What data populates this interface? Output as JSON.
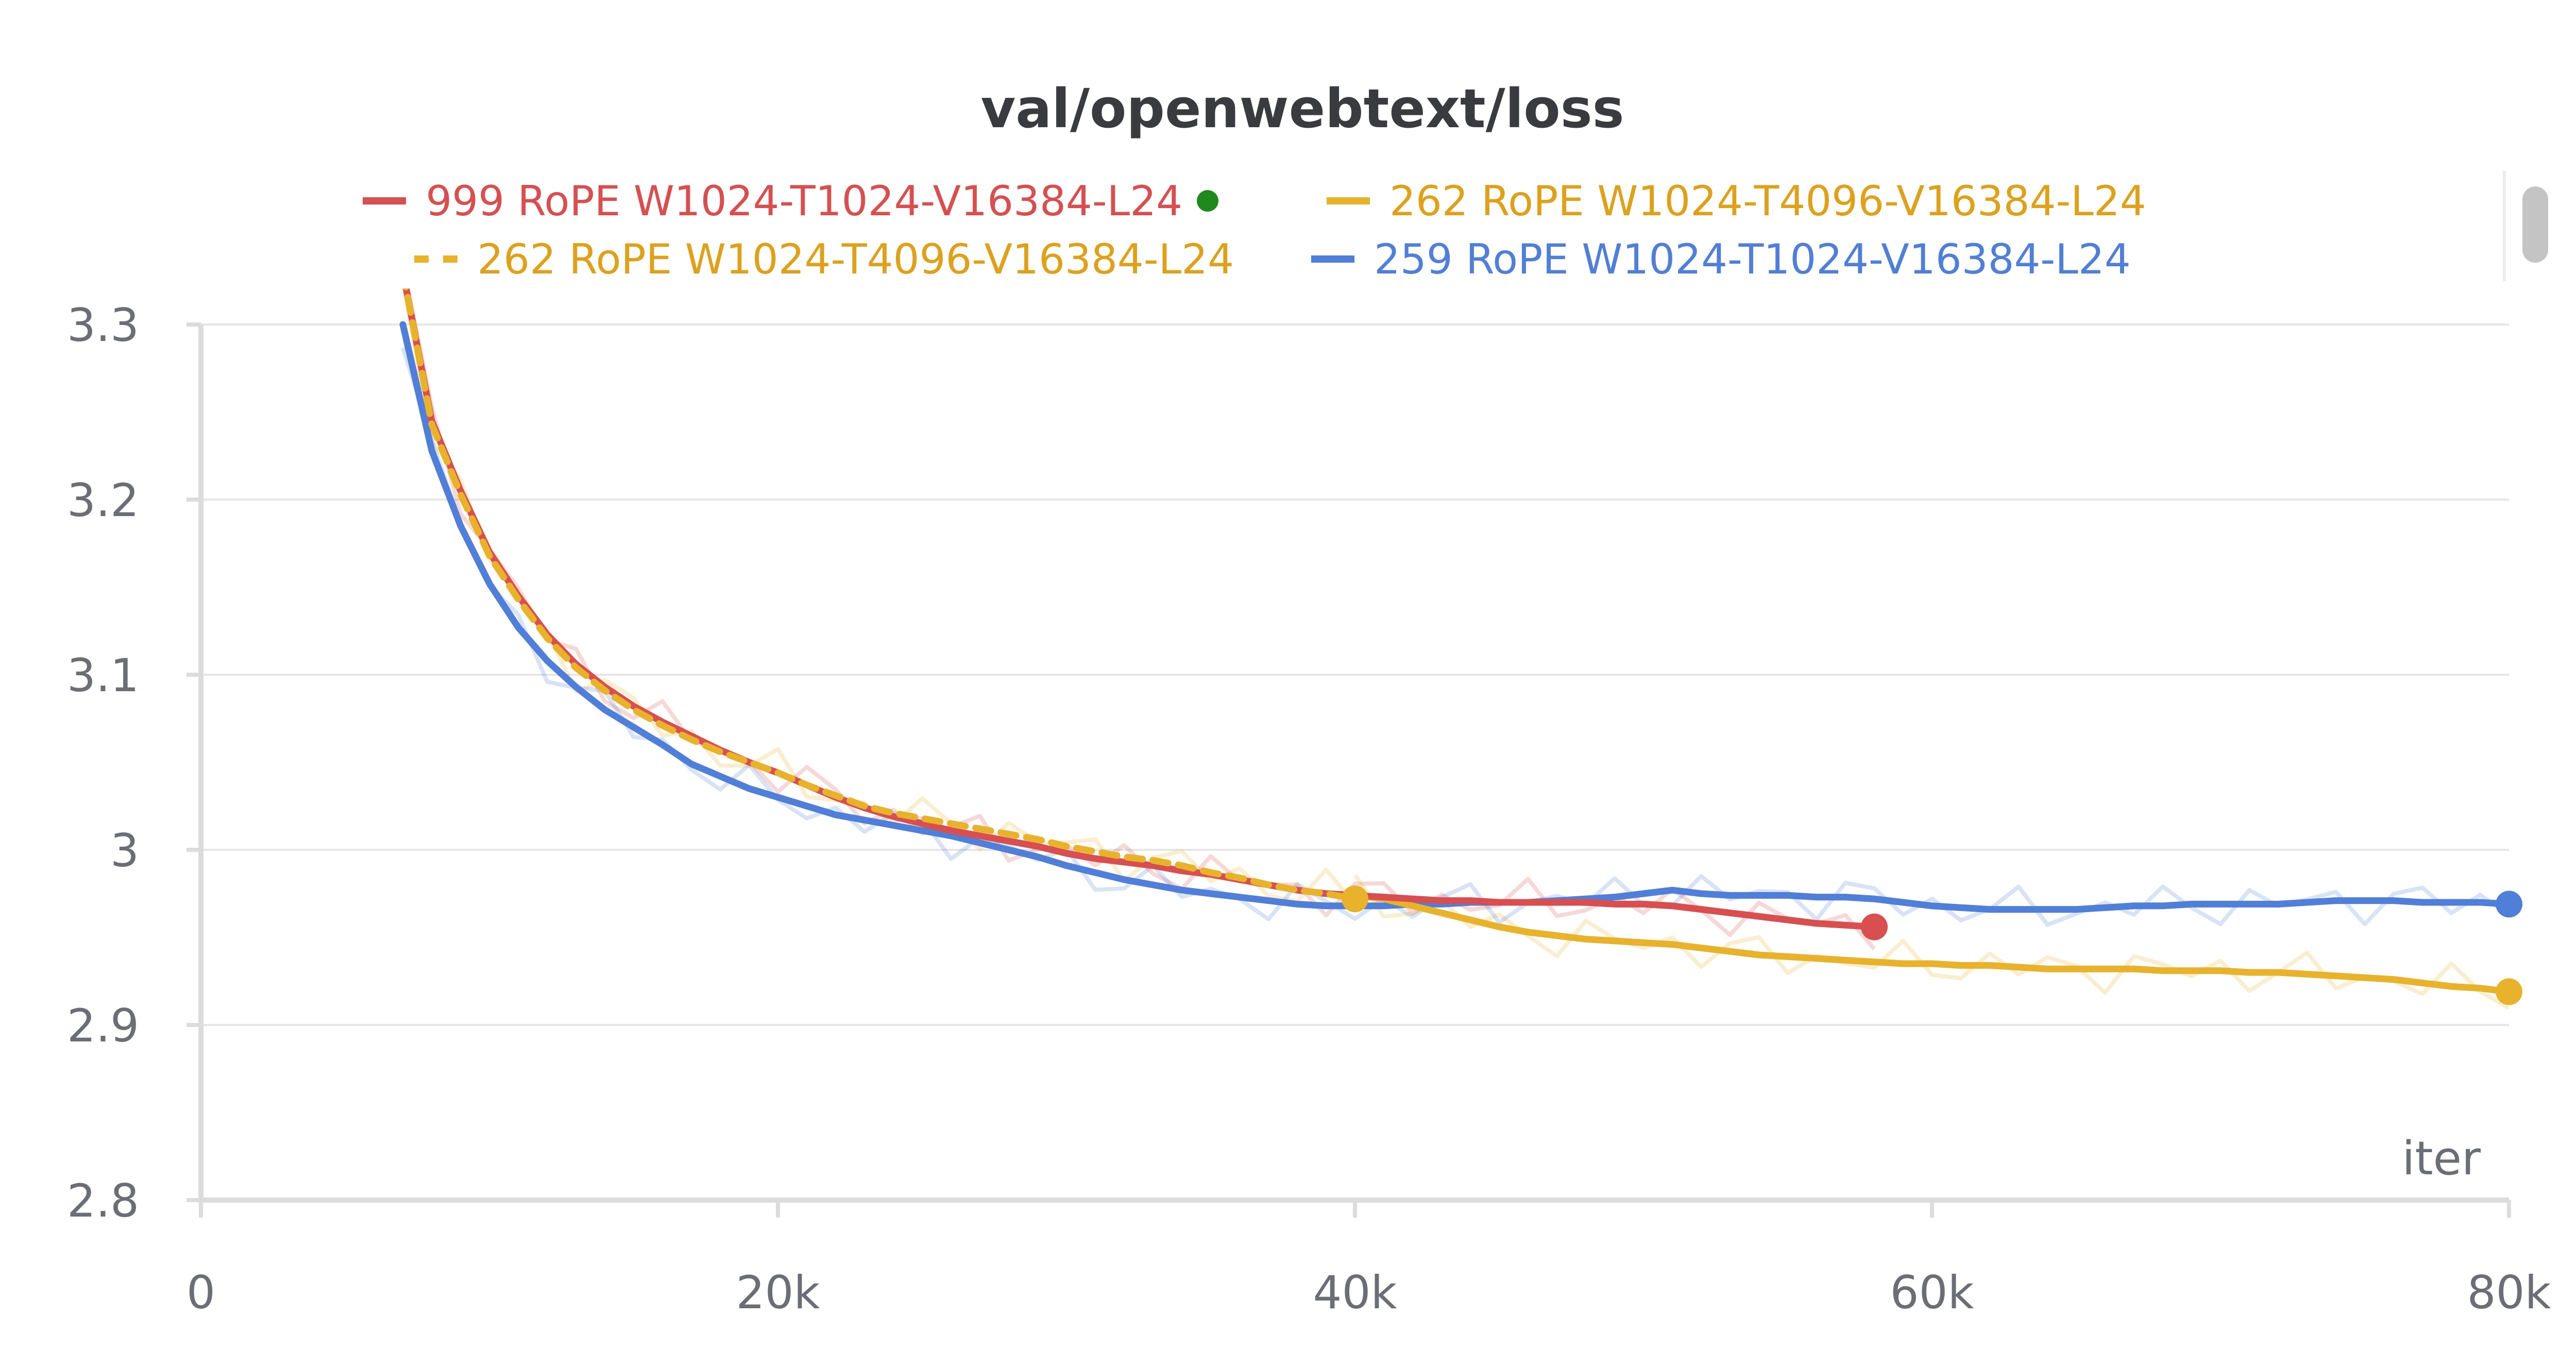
{
  "chart_data": {
    "type": "line",
    "title": "val/openwebtext/loss",
    "xlabel": "iter",
    "ylabel": "",
    "xlim": [
      0,
      80000
    ],
    "ylim": [
      2.8,
      3.3
    ],
    "x_ticks": [
      {
        "value": 0,
        "label": "0"
      },
      {
        "value": 20000,
        "label": "20k"
      },
      {
        "value": 40000,
        "label": "40k"
      },
      {
        "value": 60000,
        "label": "60k"
      },
      {
        "value": 80000,
        "label": "80k"
      }
    ],
    "y_ticks": [
      {
        "value": 2.8,
        "label": "2.8"
      },
      {
        "value": 2.9,
        "label": "2.9"
      },
      {
        "value": 3.0,
        "label": "3"
      },
      {
        "value": 3.1,
        "label": "3.1"
      },
      {
        "value": 3.2,
        "label": "3.2"
      },
      {
        "value": 3.3,
        "label": "3.3"
      }
    ],
    "grid": true,
    "legend_position": "top",
    "series": [
      {
        "name": "999 RoPE W1024-T1024-V16384-L24",
        "color": "#d94f4f",
        "dash": "solid",
        "highlighted": true,
        "end_marker": true,
        "x": [
          7000,
          8000,
          9000,
          10000,
          11000,
          12000,
          13000,
          14000,
          15000,
          16000,
          17000,
          18000,
          19000,
          20000,
          21000,
          22000,
          23000,
          24000,
          25000,
          26000,
          27000,
          28000,
          29000,
          30000,
          31000,
          32000,
          33000,
          34000,
          35000,
          36000,
          37000,
          38000,
          39000,
          40000,
          41000,
          42000,
          43000,
          44000,
          45000,
          46000,
          47000,
          48000,
          49000,
          50000,
          51000,
          52000,
          53000,
          54000,
          55000,
          56000,
          57000,
          58000
        ],
        "y": [
          3.33,
          3.245,
          3.205,
          3.17,
          3.145,
          3.123,
          3.106,
          3.093,
          3.082,
          3.073,
          3.065,
          3.057,
          3.05,
          3.044,
          3.037,
          3.03,
          3.024,
          3.019,
          3.015,
          3.011,
          3.008,
          3.005,
          3.002,
          2.998,
          2.995,
          2.993,
          2.991,
          2.988,
          2.986,
          2.983,
          2.98,
          2.977,
          2.975,
          2.974,
          2.973,
          2.972,
          2.971,
          2.971,
          2.97,
          2.97,
          2.97,
          2.97,
          2.969,
          2.969,
          2.968,
          2.966,
          2.964,
          2.962,
          2.96,
          2.958,
          2.957,
          2.956
        ]
      },
      {
        "name": "262 RoPE W1024-T4096-V16384-L24",
        "color": "#e8b22a",
        "dash": "solid",
        "end_marker": true,
        "x": [
          40000,
          41000,
          42000,
          43000,
          44000,
          45000,
          46000,
          47000,
          48000,
          49000,
          50000,
          51000,
          52000,
          53000,
          54000,
          55000,
          56000,
          57000,
          58000,
          59000,
          60000,
          61000,
          62000,
          63000,
          64000,
          65000,
          66000,
          67000,
          68000,
          69000,
          70000,
          71000,
          72000,
          73000,
          74000,
          75000,
          76000,
          77000,
          78000,
          79000,
          80000
        ],
        "y": [
          2.974,
          2.972,
          2.968,
          2.964,
          2.96,
          2.956,
          2.953,
          2.951,
          2.949,
          2.948,
          2.947,
          2.946,
          2.944,
          2.942,
          2.94,
          2.939,
          2.938,
          2.937,
          2.936,
          2.935,
          2.935,
          2.934,
          2.934,
          2.933,
          2.932,
          2.932,
          2.932,
          2.932,
          2.931,
          2.931,
          2.931,
          2.93,
          2.93,
          2.929,
          2.928,
          2.927,
          2.926,
          2.924,
          2.922,
          2.921,
          2.919
        ]
      },
      {
        "name": "262 RoPE W1024-T4096-V16384-L24",
        "color": "#e8b22a",
        "dash": "dashed",
        "end_marker": true,
        "x": [
          7000,
          8000,
          9000,
          10000,
          11000,
          12000,
          13000,
          14000,
          15000,
          16000,
          17000,
          18000,
          19000,
          20000,
          21000,
          22000,
          23000,
          24000,
          25000,
          26000,
          27000,
          28000,
          29000,
          30000,
          31000,
          32000,
          33000,
          34000,
          35000,
          36000,
          37000,
          38000,
          39000,
          40000
        ],
        "y": [
          3.33,
          3.243,
          3.203,
          3.168,
          3.143,
          3.121,
          3.104,
          3.091,
          3.08,
          3.071,
          3.063,
          3.056,
          3.05,
          3.044,
          3.037,
          3.031,
          3.025,
          3.021,
          3.018,
          3.015,
          3.012,
          3.009,
          3.006,
          3.002,
          2.999,
          2.996,
          2.994,
          2.991,
          2.987,
          2.984,
          2.98,
          2.977,
          2.975,
          2.972
        ]
      },
      {
        "name": "259 RoPE W1024-T1024-V16384-L24",
        "color": "#4f7fd8",
        "dash": "solid",
        "end_marker": true,
        "x": [
          7000,
          8000,
          9000,
          10000,
          11000,
          12000,
          13000,
          14000,
          15000,
          16000,
          17000,
          18000,
          19000,
          20000,
          21000,
          22000,
          23000,
          24000,
          25000,
          26000,
          27000,
          28000,
          29000,
          30000,
          31000,
          32000,
          33000,
          34000,
          35000,
          36000,
          37000,
          38000,
          39000,
          40000,
          41000,
          42000,
          43000,
          44000,
          45000,
          46000,
          47000,
          48000,
          49000,
          50000,
          51000,
          52000,
          53000,
          54000,
          55000,
          56000,
          57000,
          58000,
          59000,
          60000,
          61000,
          62000,
          63000,
          64000,
          65000,
          66000,
          67000,
          68000,
          69000,
          70000,
          71000,
          72000,
          73000,
          74000,
          75000,
          76000,
          77000,
          78000,
          79000,
          80000
        ],
        "y": [
          3.3,
          3.228,
          3.185,
          3.152,
          3.127,
          3.108,
          3.093,
          3.08,
          3.07,
          3.06,
          3.049,
          3.042,
          3.035,
          3.03,
          3.025,
          3.02,
          3.017,
          3.014,
          3.011,
          3.008,
          3.004,
          3.0,
          2.996,
          2.991,
          2.987,
          2.983,
          2.98,
          2.977,
          2.975,
          2.973,
          2.971,
          2.969,
          2.968,
          2.968,
          2.968,
          2.969,
          2.969,
          2.97,
          2.97,
          2.97,
          2.971,
          2.972,
          2.973,
          2.975,
          2.977,
          2.975,
          2.974,
          2.974,
          2.974,
          2.973,
          2.973,
          2.972,
          2.97,
          2.968,
          2.967,
          2.966,
          2.966,
          2.966,
          2.966,
          2.967,
          2.968,
          2.968,
          2.969,
          2.969,
          2.969,
          2.969,
          2.97,
          2.971,
          2.971,
          2.971,
          2.97,
          2.97,
          2.97,
          2.969
        ]
      }
    ]
  }
}
